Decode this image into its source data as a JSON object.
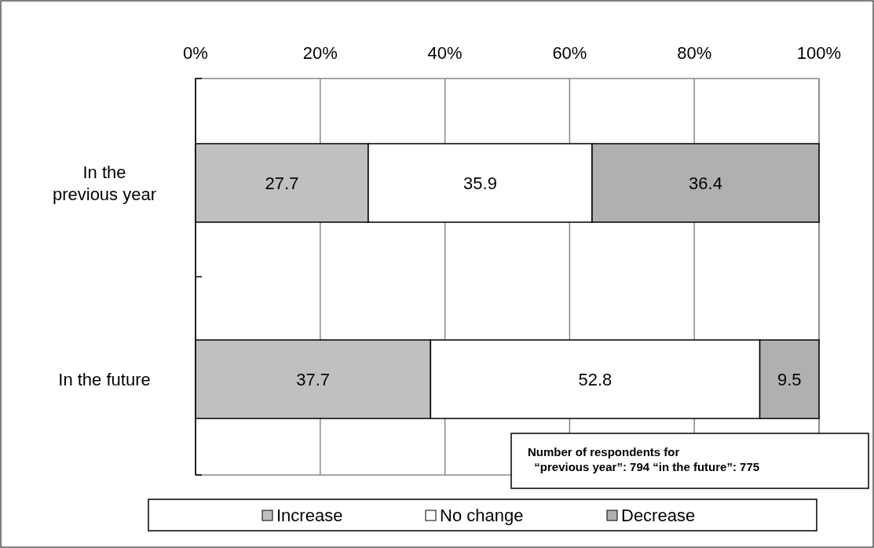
{
  "chart_data": {
    "type": "bar",
    "orientation": "horizontal",
    "stacked": true,
    "categories": [
      "In the\nprevious year",
      "In the future"
    ],
    "series": [
      {
        "name": "Increase",
        "color": "#c0c0c0",
        "values": [
          27.7,
          37.7
        ]
      },
      {
        "name": "No change",
        "color": "#ffffff",
        "values": [
          35.9,
          52.8
        ]
      },
      {
        "name": "Decrease",
        "color": "#b0b0b0",
        "values": [
          36.4,
          9.5
        ]
      }
    ],
    "xlim": [
      0,
      100
    ],
    "xticks": [
      {
        "value": 0,
        "label": "0%"
      },
      {
        "value": 20,
        "label": "20%"
      },
      {
        "value": 40,
        "label": "40%"
      },
      {
        "value": 60,
        "label": "60%"
      },
      {
        "value": 80,
        "label": "80%"
      },
      {
        "value": 100,
        "label": "100%"
      }
    ],
    "grid": "x",
    "legend": "bottom",
    "data_labels": true,
    "annotations": [
      "Number of respondents for\n  “previous year”: 794 “in the future”: 775"
    ]
  }
}
